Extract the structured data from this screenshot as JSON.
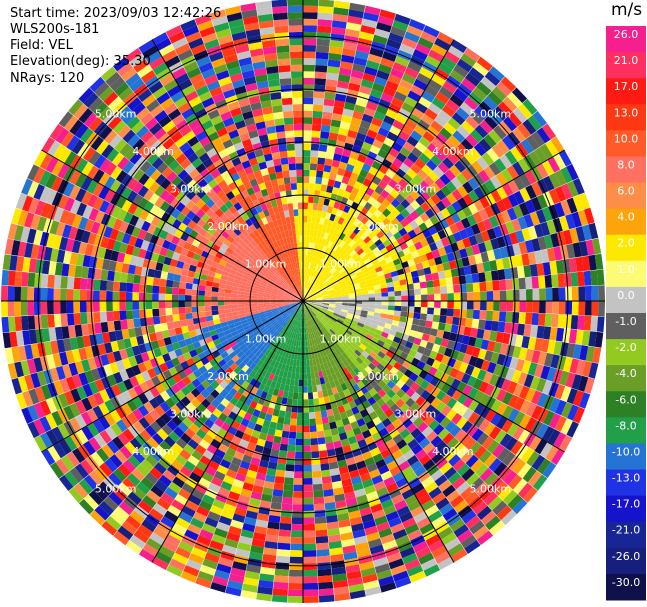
{
  "header": {
    "start_time": "Start time: 2023/09/03 12:42:26",
    "instrument": "WLS200s-181",
    "field": "Field: VEL",
    "elevation": "Elevation(deg): 35.30",
    "nrays": "NRays: 120"
  },
  "chart_data": {
    "type": "heatmap",
    "subtype": "ppi-polar",
    "range_rings_km": [
      1.0,
      2.0,
      3.0,
      4.0,
      5.0
    ],
    "range_ring_labels": [
      "1.00km",
      "2.00km",
      "3.00km",
      "4.00km",
      "5.00km"
    ],
    "max_range_km": 5.7,
    "n_rays": 120,
    "colorbar": {
      "unit": "m/s",
      "tick_labels": [
        "26.0",
        "21.0",
        "17.0",
        "13.0",
        "10.0",
        "8.0",
        "6.0",
        "4.0",
        "2.0",
        "1.0",
        "0.0",
        "-1.0",
        "-2.0",
        "-4.0",
        "-6.0",
        "-8.0",
        "-10.0",
        "-13.0",
        "-17.0",
        "-21.0",
        "-26.0",
        "-30.0"
      ],
      "colors": [
        "#f51f8f",
        "#ff2f5f",
        "#ff1a14",
        "#ff3814",
        "#ff5a28",
        "#fe7060",
        "#fe8d49",
        "#fca40a",
        "#fde900",
        "#fdfb73",
        "#c3c3c3",
        "#5f5f5f",
        "#93ca22",
        "#6a9e26",
        "#2e8024",
        "#22a049",
        "#2574d4",
        "#1f33e4",
        "#1514cc",
        "#182695",
        "#171f7c",
        "#10104a"
      ]
    },
    "pattern": {
      "inner_clean_range_km": 1.3,
      "dominant_sectors": [
        {
          "azimuth_from_deg": 255,
          "azimuth_to_deg": 320,
          "velocity_ms": 8.0
        },
        {
          "azimuth_from_deg": 320,
          "azimuth_to_deg": 355,
          "velocity_ms": 10.0
        },
        {
          "azimuth_from_deg": 355,
          "azimuth_to_deg": 85,
          "velocity_ms": 2.0
        },
        {
          "azimuth_from_deg": 85,
          "azimuth_to_deg": 110,
          "velocity_ms": 0.0
        },
        {
          "azimuth_from_deg": 110,
          "azimuth_to_deg": 140,
          "velocity_ms": -2.0
        },
        {
          "azimuth_from_deg": 140,
          "azimuth_to_deg": 175,
          "velocity_ms": -4.0
        },
        {
          "azimuth_from_deg": 175,
          "azimuth_to_deg": 215,
          "velocity_ms": -8.0
        },
        {
          "azimuth_from_deg": 215,
          "azimuth_to_deg": 255,
          "velocity_ms": -10.0
        }
      ]
    }
  }
}
